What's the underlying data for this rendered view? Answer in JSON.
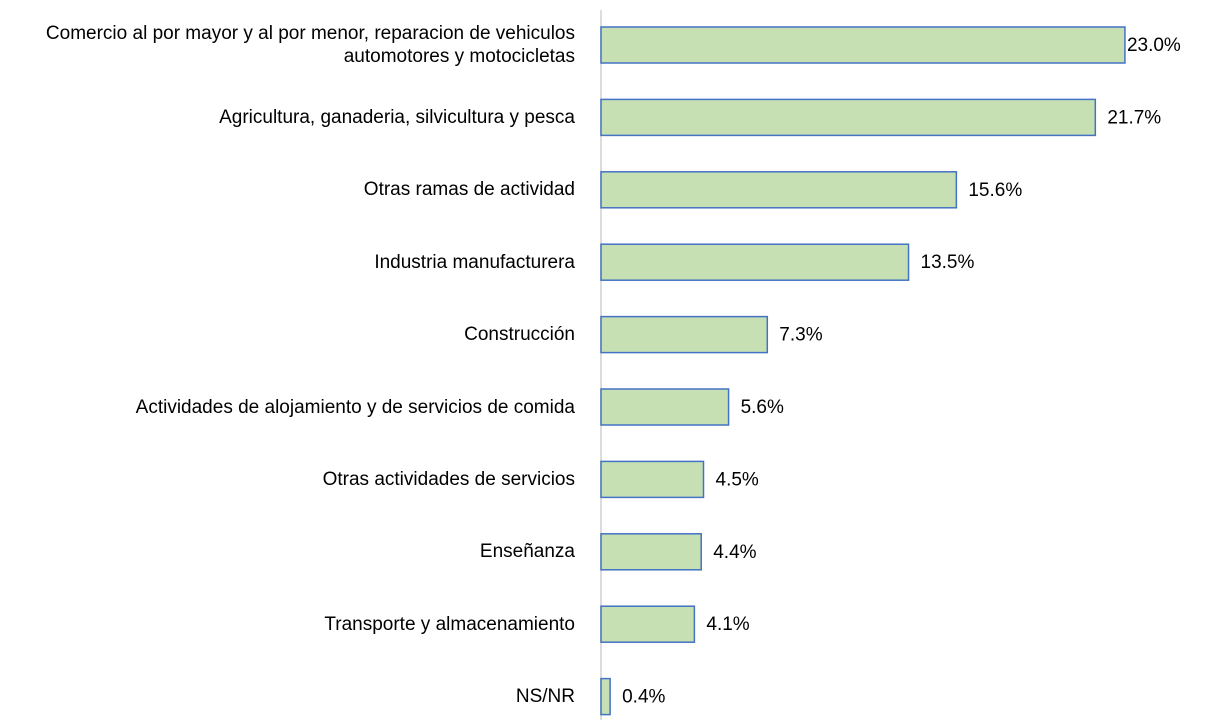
{
  "chart_data": {
    "type": "barh",
    "categories": [
      "Comercio al por mayor y al por menor, reparacion de vehiculos automotores y motocicletas",
      "Agricultura, ganaderia, silvicultura y pesca",
      "Otras ramas de actividad",
      "Industria manufacturera",
      "Construcción",
      "Actividades de alojamiento y de servicios de comida",
      "Otras actividades de servicios",
      "Enseñanza",
      "Transporte y almacenamiento",
      "NS/NR"
    ],
    "values": [
      23.0,
      21.7,
      15.6,
      13.5,
      7.3,
      5.6,
      4.5,
      4.4,
      4.1,
      0.4
    ],
    "value_labels": [
      "23.0%",
      "21.7%",
      "15.6%",
      "13.5%",
      "7.3%",
      "5.6%",
      "4.5%",
      "4.4%",
      "4.1%",
      "0.4%"
    ],
    "color": "#c6e0b4",
    "edge_color": "#4472c4"
  }
}
